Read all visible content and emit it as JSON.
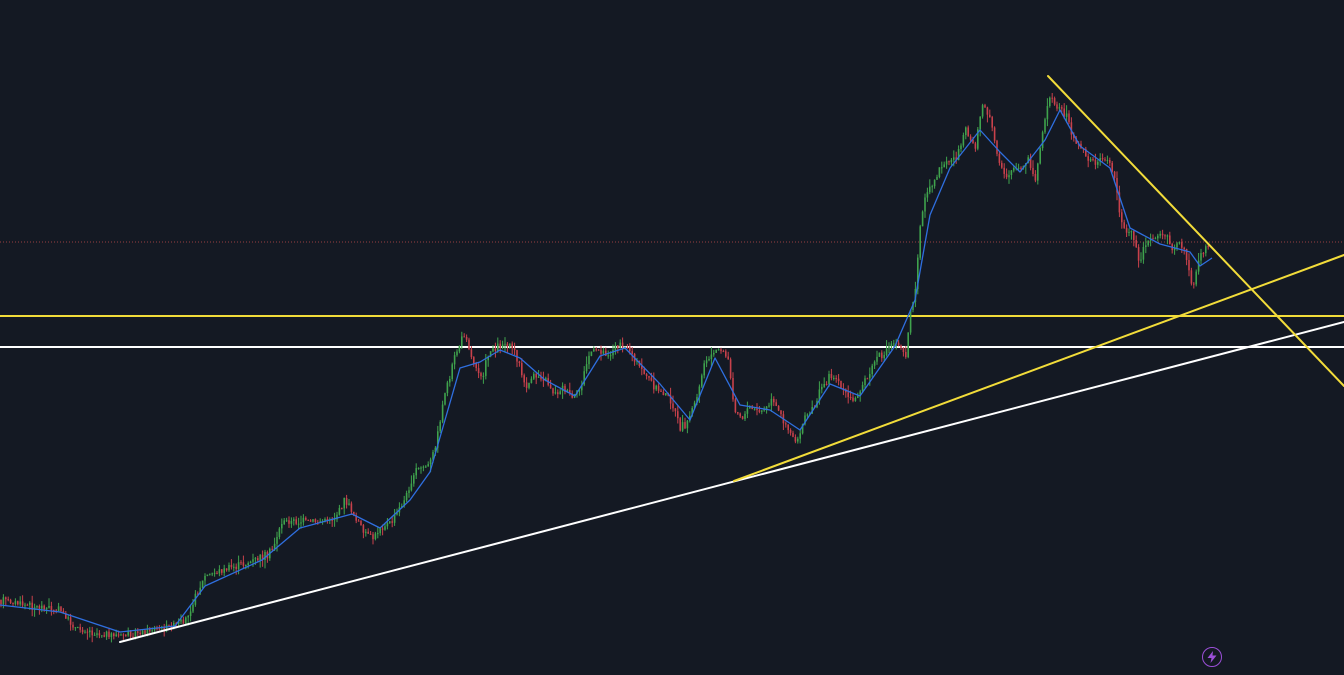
{
  "chart_data": {
    "type": "candlestick",
    "title": "",
    "xlabel": "",
    "ylabel": "",
    "grid": false,
    "legend": "none",
    "colors": {
      "background": "#141923",
      "up_candle": "#3fa34d",
      "down_candle": "#c8414b",
      "moving_average": "#2f6fe0",
      "yellow_lines": "#f2dc3a",
      "white_lines": "#ffffff",
      "current_price_line": "#b84a4a"
    },
    "price_path": [
      [
        0,
        600
      ],
      [
        30,
        606
      ],
      [
        60,
        610
      ],
      [
        75,
        628
      ],
      [
        95,
        633
      ],
      [
        120,
        636
      ],
      [
        150,
        630
      ],
      [
        175,
        626
      ],
      [
        185,
        620
      ],
      [
        195,
        598
      ],
      [
        205,
        576
      ],
      [
        225,
        570
      ],
      [
        245,
        564
      ],
      [
        262,
        558
      ],
      [
        272,
        550
      ],
      [
        282,
        522
      ],
      [
        300,
        522
      ],
      [
        318,
        522
      ],
      [
        335,
        518
      ],
      [
        345,
        500
      ],
      [
        352,
        512
      ],
      [
        362,
        528
      ],
      [
        372,
        540
      ],
      [
        380,
        528
      ],
      [
        392,
        522
      ],
      [
        405,
        500
      ],
      [
        415,
        470
      ],
      [
        430,
        465
      ],
      [
        437,
        440
      ],
      [
        445,
        392
      ],
      [
        455,
        356
      ],
      [
        465,
        332
      ],
      [
        472,
        360
      ],
      [
        482,
        376
      ],
      [
        490,
        350
      ],
      [
        500,
        345
      ],
      [
        510,
        342
      ],
      [
        518,
        360
      ],
      [
        525,
        388
      ],
      [
        535,
        376
      ],
      [
        545,
        378
      ],
      [
        555,
        395
      ],
      [
        562,
        388
      ],
      [
        572,
        398
      ],
      [
        580,
        390
      ],
      [
        590,
        352
      ],
      [
        600,
        350
      ],
      [
        610,
        355
      ],
      [
        620,
        342
      ],
      [
        630,
        350
      ],
      [
        640,
        368
      ],
      [
        650,
        380
      ],
      [
        660,
        392
      ],
      [
        670,
        398
      ],
      [
        680,
        428
      ],
      [
        688,
        422
      ],
      [
        698,
        392
      ],
      [
        705,
        360
      ],
      [
        713,
        355
      ],
      [
        720,
        348
      ],
      [
        728,
        360
      ],
      [
        735,
        410
      ],
      [
        742,
        418
      ],
      [
        750,
        408
      ],
      [
        758,
        412
      ],
      [
        765,
        410
      ],
      [
        772,
        402
      ],
      [
        780,
        414
      ],
      [
        788,
        428
      ],
      [
        796,
        442
      ],
      [
        805,
        418
      ],
      [
        815,
        405
      ],
      [
        822,
        388
      ],
      [
        830,
        375
      ],
      [
        838,
        380
      ],
      [
        846,
        396
      ],
      [
        853,
        402
      ],
      [
        860,
        388
      ],
      [
        868,
        378
      ],
      [
        876,
        358
      ],
      [
        885,
        352
      ],
      [
        893,
        342
      ],
      [
        900,
        345
      ],
      [
        906,
        355
      ],
      [
        910,
        315
      ],
      [
        915,
        290
      ],
      [
        920,
        226
      ],
      [
        926,
        195
      ],
      [
        932,
        188
      ],
      [
        940,
        168
      ],
      [
        948,
        162
      ],
      [
        956,
        158
      ],
      [
        965,
        128
      ],
      [
        975,
        148
      ],
      [
        982,
        104
      ],
      [
        990,
        118
      ],
      [
        998,
        160
      ],
      [
        1006,
        176
      ],
      [
        1014,
        168
      ],
      [
        1022,
        170
      ],
      [
        1028,
        158
      ],
      [
        1035,
        184
      ],
      [
        1042,
        134
      ],
      [
        1050,
        98
      ],
      [
        1058,
        108
      ],
      [
        1066,
        114
      ],
      [
        1074,
        140
      ],
      [
        1082,
        150
      ],
      [
        1090,
        160
      ],
      [
        1098,
        162
      ],
      [
        1106,
        158
      ],
      [
        1114,
        175
      ],
      [
        1120,
        212
      ],
      [
        1126,
        238
      ],
      [
        1132,
        226
      ],
      [
        1138,
        262
      ],
      [
        1144,
        248
      ],
      [
        1150,
        240
      ],
      [
        1158,
        236
      ],
      [
        1166,
        232
      ],
      [
        1172,
        248
      ],
      [
        1180,
        242
      ],
      [
        1186,
        256
      ],
      [
        1192,
        290
      ],
      [
        1198,
        262
      ],
      [
        1204,
        250
      ],
      [
        1210,
        244
      ]
    ],
    "moving_average_path": [
      [
        0,
        605
      ],
      [
        60,
        612
      ],
      [
        120,
        632
      ],
      [
        175,
        626
      ],
      [
        205,
        586
      ],
      [
        262,
        560
      ],
      [
        300,
        528
      ],
      [
        352,
        514
      ],
      [
        380,
        528
      ],
      [
        410,
        500
      ],
      [
        430,
        472
      ],
      [
        445,
        420
      ],
      [
        460,
        368
      ],
      [
        480,
        362
      ],
      [
        500,
        350
      ],
      [
        520,
        358
      ],
      [
        545,
        380
      ],
      [
        575,
        396
      ],
      [
        600,
        356
      ],
      [
        625,
        348
      ],
      [
        660,
        384
      ],
      [
        690,
        420
      ],
      [
        715,
        358
      ],
      [
        740,
        405
      ],
      [
        770,
        410
      ],
      [
        800,
        430
      ],
      [
        830,
        384
      ],
      [
        860,
        396
      ],
      [
        895,
        346
      ],
      [
        915,
        300
      ],
      [
        930,
        215
      ],
      [
        950,
        168
      ],
      [
        980,
        130
      ],
      [
        1000,
        152
      ],
      [
        1020,
        172
      ],
      [
        1045,
        140
      ],
      [
        1060,
        110
      ],
      [
        1080,
        146
      ],
      [
        1110,
        168
      ],
      [
        1130,
        228
      ],
      [
        1160,
        244
      ],
      [
        1190,
        252
      ],
      [
        1200,
        266
      ],
      [
        1212,
        258
      ]
    ],
    "horizontal_levels": [
      {
        "name": "yellow-resistance",
        "y": 316,
        "color": "#f2dc3a"
      },
      {
        "name": "white-resistance",
        "y": 347,
        "color": "#ffffff"
      },
      {
        "name": "current-price",
        "y": 242,
        "color": "#b84a4a",
        "style": "dotted"
      }
    ],
    "trendlines": [
      {
        "name": "white-long-support",
        "color": "#ffffff",
        "x1": 120,
        "y1": 642,
        "x2": 1344,
        "y2": 322
      },
      {
        "name": "yellow-support",
        "color": "#f2dc3a",
        "x1": 734,
        "y1": 481,
        "x2": 1344,
        "y2": 255
      },
      {
        "name": "yellow-descending-resistance",
        "color": "#f2dc3a",
        "x1": 1048,
        "y1": 76,
        "x2": 1344,
        "y2": 386
      }
    ]
  },
  "toolbar": {
    "bolt_icon": "lightning-bolt-icon",
    "bolt_color": "#9b4fd8"
  }
}
